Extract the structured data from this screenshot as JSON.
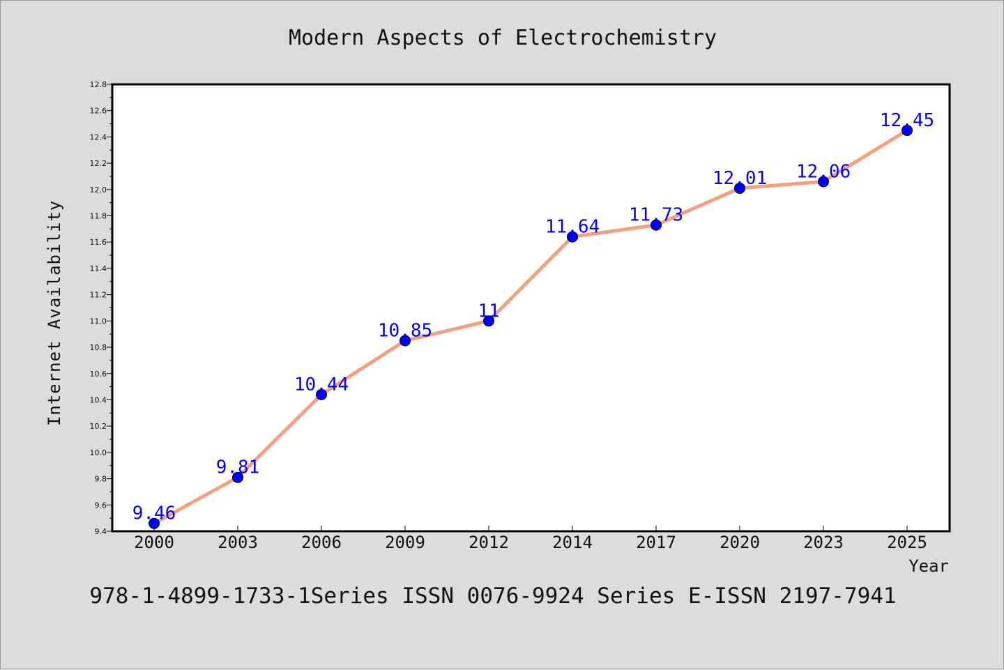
{
  "chart_data": {
    "type": "line",
    "title": "Modern Aspects of Electrochemistry",
    "xlabel": "Year",
    "ylabel": "Internet Availability",
    "categories": [
      "2000",
      "2003",
      "2006",
      "2009",
      "2012",
      "2014",
      "2017",
      "2020",
      "2023",
      "2025"
    ],
    "values": [
      9.46,
      9.81,
      10.44,
      10.85,
      11,
      11.64,
      11.73,
      12.01,
      12.06,
      12.45
    ],
    "data_labels": [
      "9.46",
      "9.81",
      "10.44",
      "10.85",
      "11",
      "11.64",
      "11.73",
      "12.01",
      "12.06",
      "12.45"
    ],
    "ylim": [
      9.4,
      12.8
    ],
    "yticks": [
      "9.4",
      "9.6",
      "9.8",
      "10.0",
      "10.2",
      "10.4",
      "10.6",
      "10.8",
      "11.0",
      "11.2",
      "11.4",
      "11.6",
      "11.8",
      "12.0",
      "12.2",
      "12.4",
      "12.6",
      "12.8"
    ],
    "grid": false,
    "line_color": "#f4a07e",
    "marker_color": "#0000ff",
    "label_color": "#0000ff",
    "background_color": "#dcdcdc",
    "plot_background": "#ffffff"
  },
  "footer": {
    "text": "978-1-4899-1733-1Series ISSN 0076-9924 Series E-ISSN 2197-7941"
  }
}
